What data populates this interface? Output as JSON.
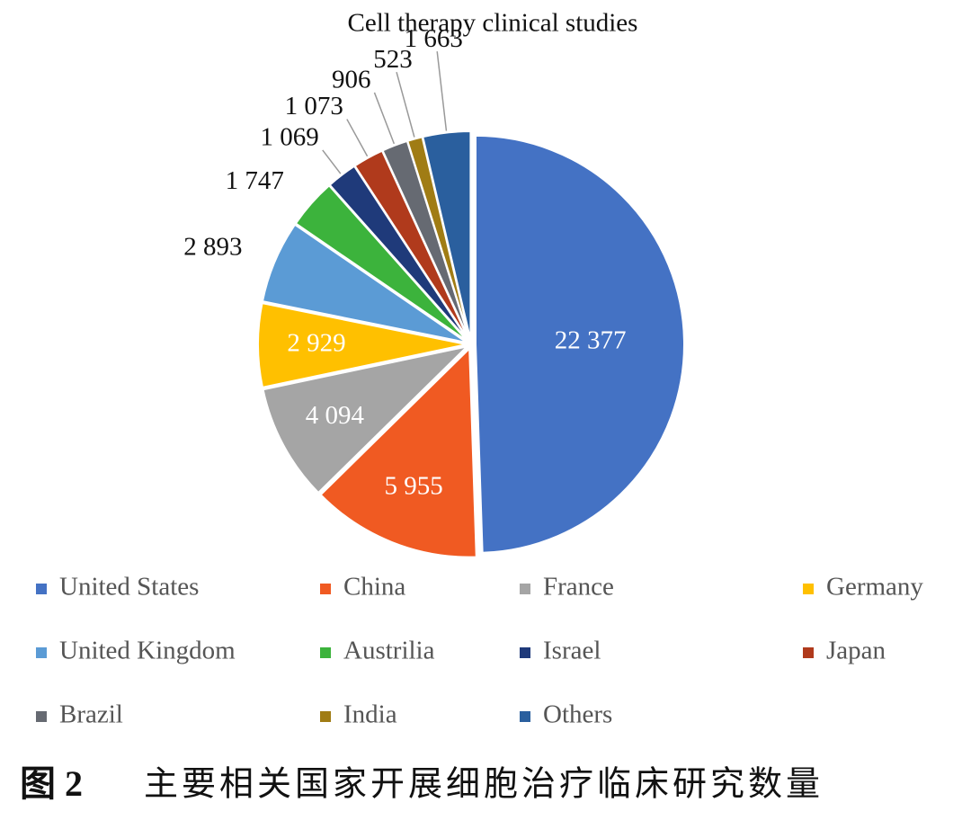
{
  "chart_data": {
    "type": "pie",
    "title": "Cell therapy clinical studies",
    "categories": [
      "United States",
      "China",
      "France",
      "Germany",
      "United Kingdom",
      "Austrilia",
      "Israel",
      "Japan",
      "Brazil",
      "India",
      "Others"
    ],
    "values": [
      22377,
      5955,
      4094,
      2929,
      2893,
      1747,
      1069,
      1073,
      906,
      523,
      1663
    ],
    "value_labels": [
      "22 377",
      "5 955",
      "4 094",
      "2 929",
      "2 893",
      "1 747",
      "1 069",
      "1 073",
      "906",
      "523",
      "1 663"
    ],
    "colors": [
      "#4472c4",
      "#f05a22",
      "#a5a5a5",
      "#ffc000",
      "#5b9bd5",
      "#3cb33c",
      "#1f3a7a",
      "#b03a1c",
      "#666a72",
      "#a07c14",
      "#2a5f9e"
    ]
  },
  "caption": {
    "figure": "图 2",
    "text": "主要相关国家开展细胞治疗临床研究数量"
  }
}
